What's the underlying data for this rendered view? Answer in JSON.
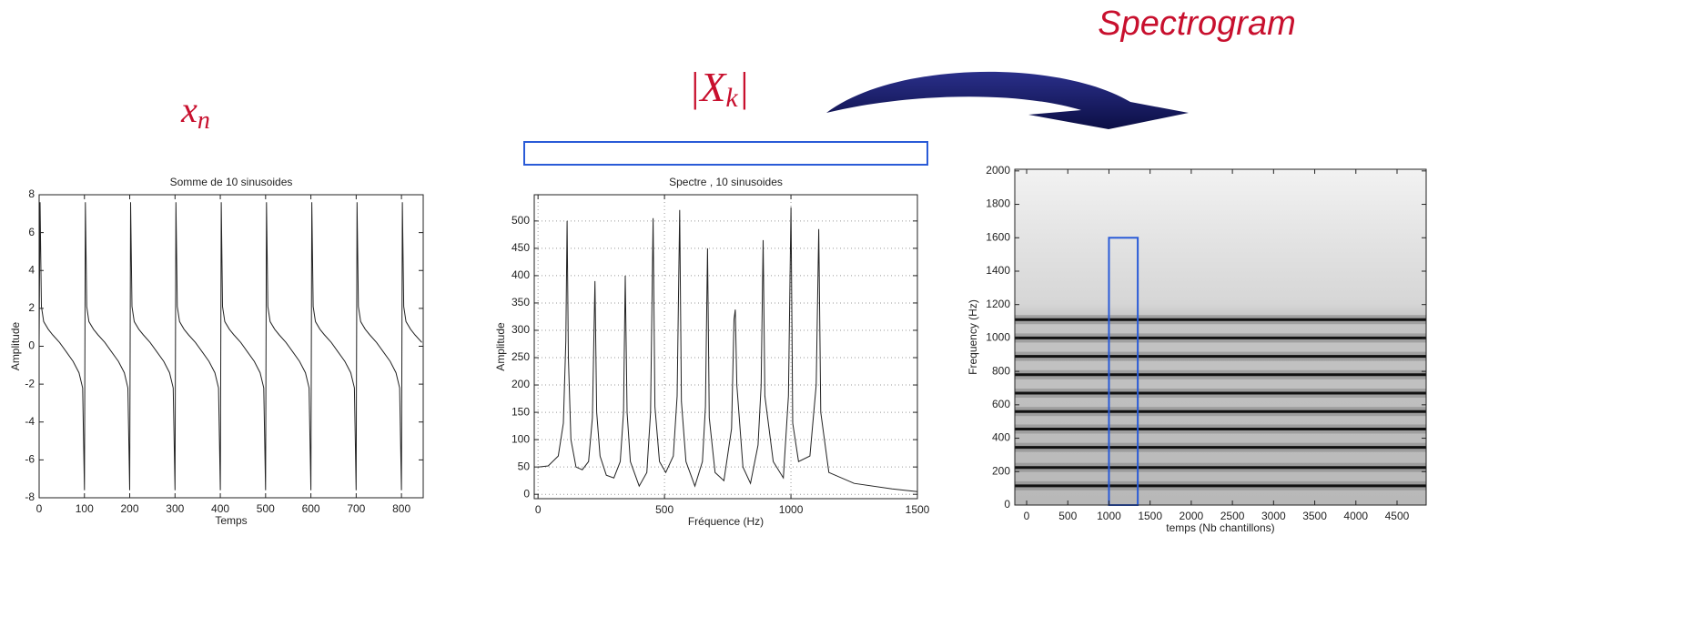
{
  "labels": {
    "signal": {
      "base": "x",
      "sub": "n"
    },
    "spectrum": {
      "open": "|X",
      "sub": "k",
      "close": "|"
    },
    "spectrogram": "Spectrogram"
  },
  "chart_data": [
    {
      "type": "line",
      "title": "Somme de 10 sinusoides",
      "x_label": "Temps",
      "y_label": "Amplitude",
      "x": [
        0,
        2,
        5,
        10,
        20,
        30,
        45,
        60,
        75,
        88,
        96,
        100,
        102,
        105,
        110,
        120,
        130,
        145,
        160,
        175,
        188,
        196,
        200,
        202,
        205,
        210,
        220,
        230,
        245,
        260,
        275,
        288,
        296,
        300,
        302,
        305,
        310,
        320,
        330,
        345,
        360,
        375,
        388,
        396,
        400,
        402,
        405,
        410,
        420,
        430,
        445,
        460,
        475,
        488,
        496,
        500,
        502,
        505,
        510,
        520,
        530,
        545,
        560,
        575,
        588,
        596,
        600,
        602,
        605,
        610,
        620,
        630,
        645,
        660,
        675,
        688,
        696,
        700,
        702,
        705,
        710,
        720,
        730,
        745,
        760,
        775,
        788,
        796,
        800,
        802,
        805,
        810,
        820,
        830,
        845
      ],
      "values": [
        0.2,
        7.6,
        2.1,
        1.3,
        0.9,
        0.6,
        0.2,
        -0.3,
        -0.8,
        -1.4,
        -2.2,
        -7.6,
        7.6,
        2.1,
        1.3,
        0.9,
        0.6,
        0.2,
        -0.3,
        -0.8,
        -1.4,
        -2.2,
        -7.6,
        7.6,
        2.1,
        1.3,
        0.9,
        0.6,
        0.2,
        -0.3,
        -0.8,
        -1.4,
        -2.2,
        -7.6,
        7.6,
        2.1,
        1.3,
        0.9,
        0.6,
        0.2,
        -0.3,
        -0.8,
        -1.4,
        -2.2,
        -7.6,
        7.6,
        2.1,
        1.3,
        0.9,
        0.6,
        0.2,
        -0.3,
        -0.8,
        -1.4,
        -2.2,
        -7.6,
        7.6,
        2.1,
        1.3,
        0.9,
        0.6,
        0.2,
        -0.3,
        -0.8,
        -1.4,
        -2.2,
        -7.6,
        7.6,
        2.1,
        1.3,
        0.9,
        0.6,
        0.2,
        -0.3,
        -0.8,
        -1.4,
        -2.2,
        -7.6,
        7.6,
        2.1,
        1.3,
        0.9,
        0.6,
        0.2,
        -0.3,
        -0.8,
        -1.4,
        -2.2,
        -7.6,
        7.6,
        2.1,
        1.3,
        0.9,
        0.6,
        0.2
      ],
      "color": "#222222",
      "xlim": [
        0,
        848
      ],
      "ylim": [
        -8,
        8
      ],
      "xticks": [
        0,
        100,
        200,
        300,
        400,
        500,
        600,
        700,
        800
      ],
      "yticks": [
        -8,
        -6,
        -4,
        -2,
        0,
        2,
        4,
        6,
        8
      ],
      "grid": false
    },
    {
      "type": "line",
      "title": "Spectre , 10 sinusoides",
      "x_label": "Fréquence (Hz)",
      "y_label": "Amplitude",
      "x": [
        0,
        40,
        80,
        100,
        110,
        115,
        120,
        130,
        150,
        175,
        200,
        215,
        225,
        232,
        245,
        270,
        300,
        325,
        338,
        345,
        352,
        365,
        400,
        430,
        445,
        455,
        462,
        480,
        505,
        535,
        550,
        560,
        567,
        585,
        620,
        650,
        662,
        670,
        677,
        700,
        735,
        765,
        775,
        780,
        786,
        810,
        840,
        870,
        882,
        890,
        897,
        930,
        970,
        990,
        1000,
        1007,
        1030,
        1075,
        1100,
        1110,
        1118,
        1150,
        1250,
        1400,
        1500
      ],
      "values": [
        50,
        52,
        70,
        130,
        280,
        500,
        250,
        100,
        50,
        45,
        60,
        140,
        390,
        150,
        70,
        35,
        30,
        60,
        150,
        400,
        150,
        60,
        15,
        40,
        150,
        505,
        160,
        60,
        40,
        70,
        180,
        520,
        170,
        60,
        15,
        60,
        160,
        450,
        140,
        40,
        25,
        120,
        320,
        338,
        200,
        50,
        20,
        90,
        200,
        465,
        180,
        60,
        30,
        180,
        525,
        130,
        60,
        70,
        200,
        485,
        150,
        40,
        20,
        10,
        5
      ],
      "color": "#222222",
      "xlim": [
        -15,
        1500
      ],
      "ylim": [
        -8,
        548
      ],
      "xticks": [
        0,
        500,
        1000,
        1500
      ],
      "yticks": [
        0,
        50,
        100,
        150,
        200,
        250,
        300,
        350,
        400,
        450,
        500
      ],
      "grid": true
    },
    {
      "type": "spectrogram",
      "x_label": "temps (Nb chantillons)",
      "y_label": "Frequency (Hz)",
      "band_frequencies": [
        115,
        225,
        345,
        455,
        560,
        670,
        780,
        890,
        1000,
        1110
      ],
      "highlight": {
        "x": [
          1000,
          1350
        ],
        "y": [
          0,
          1600
        ]
      },
      "highlight_color": "#2a5bd7",
      "xlim": [
        -144,
        4854
      ],
      "ylim": [
        0,
        2010
      ],
      "xticks": [
        0,
        500,
        1000,
        1500,
        2000,
        2500,
        3000,
        3500,
        4000,
        4500
      ],
      "yticks": [
        0,
        200,
        400,
        600,
        800,
        1000,
        1200,
        1400,
        1600,
        1800,
        2000
      ],
      "grid": false
    }
  ]
}
